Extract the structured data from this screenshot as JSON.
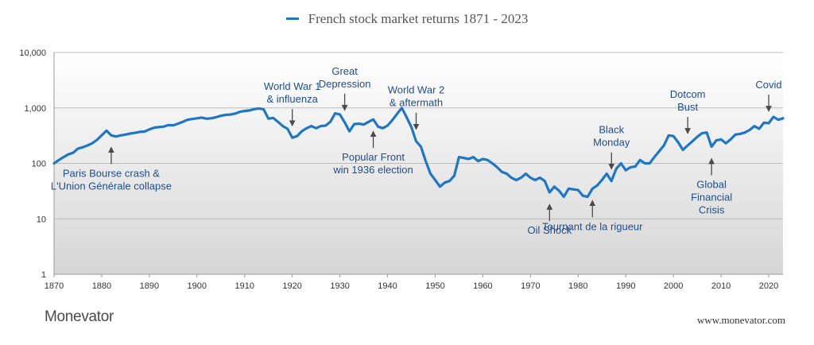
{
  "legend_label": "French stock market returns 1871 - 2023",
  "brand": "Monevator",
  "website": "www.monevator.com",
  "colors": {
    "series": "#1f77c4",
    "annotation": "#1f4e8c",
    "arrow": "#4a4a4a",
    "plot_top": "#ffffff",
    "plot_bottom": "#d6d6d6"
  },
  "chart_data": {
    "type": "line",
    "log_scale": true,
    "grid": true,
    "legend_placement": "top-center",
    "xlim": [
      1870,
      2023
    ],
    "ylim": [
      1,
      10000
    ],
    "x_ticks": [
      "1870",
      "1880",
      "1890",
      "1900",
      "1910",
      "1920",
      "1930",
      "1940",
      "1950",
      "1960",
      "1970",
      "1980",
      "1990",
      "2000",
      "2010",
      "2020"
    ],
    "y_ticks": [
      {
        "value": 1,
        "label": "1"
      },
      {
        "value": 10,
        "label": "10"
      },
      {
        "value": 100,
        "label": "100"
      },
      {
        "value": 1000,
        "label": "1,000"
      },
      {
        "value": 10000,
        "label": "10,000"
      }
    ],
    "series": [
      {
        "name": "French stock market returns 1871 - 2023",
        "x": [
          1870,
          1871,
          1872,
          1873,
          1874,
          1875,
          1876,
          1877,
          1878,
          1879,
          1880,
          1881,
          1882,
          1883,
          1884,
          1885,
          1886,
          1887,
          1888,
          1889,
          1890,
          1891,
          1892,
          1893,
          1894,
          1895,
          1896,
          1897,
          1898,
          1899,
          1900,
          1901,
          1902,
          1903,
          1904,
          1905,
          1906,
          1907,
          1908,
          1909,
          1910,
          1911,
          1912,
          1913,
          1914,
          1915,
          1916,
          1917,
          1918,
          1919,
          1920,
          1921,
          1922,
          1923,
          1924,
          1925,
          1926,
          1927,
          1928,
          1929,
          1930,
          1931,
          1932,
          1933,
          1934,
          1935,
          1936,
          1937,
          1938,
          1939,
          1940,
          1941,
          1942,
          1943,
          1944,
          1945,
          1946,
          1947,
          1948,
          1949,
          1950,
          1951,
          1952,
          1953,
          1954,
          1955,
          1956,
          1957,
          1958,
          1959,
          1960,
          1961,
          1962,
          1963,
          1964,
          1965,
          1966,
          1967,
          1968,
          1969,
          1970,
          1971,
          1972,
          1973,
          1974,
          1975,
          1976,
          1977,
          1978,
          1979,
          1980,
          1981,
          1982,
          1983,
          1984,
          1985,
          1986,
          1987,
          1988,
          1989,
          1990,
          1991,
          1992,
          1993,
          1994,
          1995,
          1996,
          1997,
          1998,
          1999,
          2000,
          2001,
          2002,
          2003,
          2004,
          2005,
          2006,
          2007,
          2008,
          2009,
          2010,
          2011,
          2012,
          2013,
          2014,
          2015,
          2016,
          2017,
          2018,
          2019,
          2020,
          2021,
          2022,
          2023
        ],
        "y": [
          100,
          115,
          130,
          145,
          155,
          185,
          195,
          210,
          230,
          265,
          320,
          390,
          320,
          305,
          320,
          330,
          345,
          355,
          370,
          375,
          410,
          440,
          450,
          460,
          490,
          485,
          520,
          560,
          610,
          630,
          650,
          670,
          640,
          650,
          680,
          720,
          750,
          760,
          790,
          850,
          880,
          900,
          950,
          980,
          940,
          640,
          660,
          560,
          470,
          420,
          290,
          310,
          380,
          430,
          470,
          430,
          470,
          480,
          560,
          800,
          760,
          550,
          380,
          510,
          520,
          500,
          560,
          620,
          460,
          430,
          480,
          600,
          780,
          1000,
          680,
          450,
          250,
          200,
          110,
          65,
          50,
          38,
          45,
          48,
          60,
          130,
          125,
          120,
          130,
          110,
          120,
          115,
          100,
          85,
          70,
          65,
          55,
          50,
          55,
          65,
          55,
          50,
          55,
          48,
          30,
          38,
          32,
          25,
          35,
          34,
          33,
          26,
          25,
          35,
          40,
          50,
          65,
          48,
          80,
          100,
          75,
          85,
          88,
          115,
          100,
          100,
          130,
          165,
          210,
          320,
          310,
          240,
          175,
          210,
          250,
          300,
          350,
          360,
          200,
          260,
          270,
          230,
          270,
          330,
          340,
          360,
          400,
          470,
          420,
          540,
          530,
          690,
          610,
          650
        ]
      }
    ],
    "annotations": [
      {
        "text": [
          "Paris Bourse crash &",
          "L'Union Générale collapse"
        ],
        "year": 1882,
        "arrow": "up"
      },
      {
        "text": [
          "World War 1",
          "& influenza"
        ],
        "year": 1920,
        "arrow": "down"
      },
      {
        "text": [
          "Great",
          "Depression"
        ],
        "year": 1931,
        "arrow": "down"
      },
      {
        "text": [
          "Popular Front",
          "win 1936 election"
        ],
        "year": 1937,
        "arrow": "up"
      },
      {
        "text": [
          "World War 2",
          "& aftermath"
        ],
        "year": 1946,
        "arrow": "down"
      },
      {
        "text": [
          "Oil Shock"
        ],
        "year": 1974,
        "arrow": "up"
      },
      {
        "text": [
          "Tournant de la rigueur"
        ],
        "year": 1983,
        "arrow": "up"
      },
      {
        "text": [
          "Black",
          "Monday"
        ],
        "year": 1987,
        "arrow": "down"
      },
      {
        "text": [
          "Dotcom",
          "Bust"
        ],
        "year": 2003,
        "arrow": "down"
      },
      {
        "text": [
          "Global",
          "Financial",
          "Crisis"
        ],
        "year": 2008,
        "arrow": "up"
      },
      {
        "text": [
          "Covid"
        ],
        "year": 2020,
        "arrow": "down"
      }
    ]
  }
}
